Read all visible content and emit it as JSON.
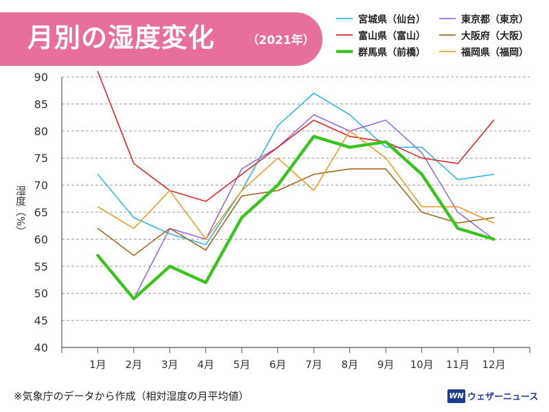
{
  "header": {
    "title": "月別の湿度変化",
    "year": "（2021年）"
  },
  "footer": {
    "note": "※気象庁のデータから作成（相対湿度の月平均値）",
    "brand_logo": "WN",
    "brand_name": "ウェザーニュース"
  },
  "chart_data": {
    "type": "line",
    "title": "月別の湿度変化",
    "subtitle": "（2021年）",
    "xlabel": "",
    "ylabel": "湿度（%）",
    "ylim": [
      40,
      90
    ],
    "yticks": [
      40,
      45,
      50,
      55,
      60,
      65,
      70,
      75,
      80,
      85,
      90
    ],
    "grid": true,
    "legend_position": "top-right",
    "categories": [
      "1月",
      "2月",
      "3月",
      "4月",
      "5月",
      "6月",
      "7月",
      "8月",
      "9月",
      "10月",
      "11月",
      "12月"
    ],
    "series": [
      {
        "name": "宮城県（仙台）",
        "color": "#2bb7e6",
        "values": [
          72,
          64,
          61,
          59,
          69,
          81,
          87,
          83,
          77,
          77,
          71,
          72
        ]
      },
      {
        "name": "東京都（東京）",
        "color": "#9966e8",
        "values": [
          57,
          49,
          62,
          60,
          73,
          77,
          83,
          80,
          82,
          76,
          65,
          60
        ]
      },
      {
        "name": "富山県（富山）",
        "color": "#e02424",
        "values": [
          91,
          74,
          69,
          67,
          72,
          77,
          82,
          79,
          78,
          75,
          74,
          82
        ]
      },
      {
        "name": "大阪府（大阪）",
        "color": "#a0661a",
        "values": [
          62,
          57,
          62,
          58,
          68,
          69,
          72,
          73,
          73,
          65,
          63,
          64
        ]
      },
      {
        "name": "群馬県（前橋）",
        "color": "#3ac420",
        "bold": true,
        "values": [
          57,
          49,
          55,
          52,
          64,
          70,
          79,
          77,
          78,
          72,
          62,
          60
        ]
      },
      {
        "name": "福岡県（福岡）",
        "color": "#f39a26",
        "values": [
          66,
          62,
          69,
          60,
          69,
          75,
          69,
          80,
          75,
          66,
          66,
          63
        ]
      }
    ]
  }
}
